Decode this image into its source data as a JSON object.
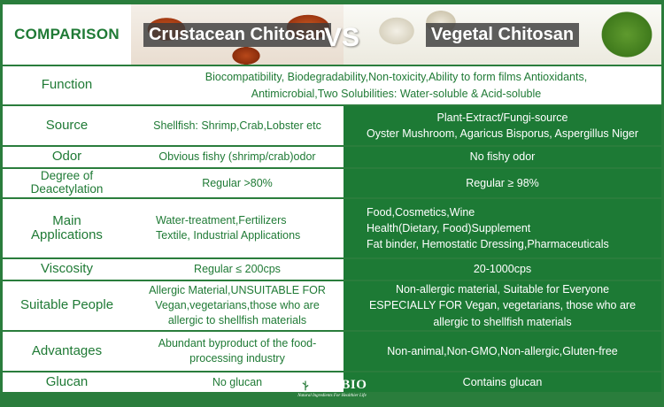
{
  "header": {
    "comparison": "COMPARISON",
    "crustacean_title": "Crustacean Chitosan",
    "vs": "VS",
    "vegetal_title": "Vegetal Chitosan"
  },
  "rows": {
    "function": {
      "label": "Function",
      "text_line1": "Biocompatibility, Biodegradability,Non-toxicity,Ability to form films Antioxidants,",
      "text_line2": "Antimicrobial,Two Solubilities: Water-soluble & Acid-soluble"
    },
    "source": {
      "label": "Source",
      "crustacean": "Shellfish: Shrimp,Crab,Lobster etc",
      "vegetal_line1": "Plant-Extract/Fungi-source",
      "vegetal_line2": "Oyster Mushroom, Agaricus Bisporus, Aspergillus Niger"
    },
    "odor": {
      "label": "Odor",
      "crustacean": "Obvious fishy (shrimp/crab)odor",
      "vegetal": "No fishy odor"
    },
    "deacetylation": {
      "label_line1": "Degree of",
      "label_line2": "Deacetylation",
      "crustacean": "Regular >80%",
      "vegetal": "Regular ≥ 98%"
    },
    "applications": {
      "label_line1": "Main",
      "label_line2": "Applications",
      "crustacean_line1": "Water-treatment,Fertilizers",
      "crustacean_line2": "Textile, Industrial Applications",
      "vegetal_line1": "Food,Cosmetics,Wine",
      "vegetal_line2": "Health(Dietary, Food)Supplement",
      "vegetal_line3": "Fat binder, Hemostatic Dressing,Pharmaceuticals"
    },
    "viscosity": {
      "label": "Viscosity",
      "crustacean": "Regular ≤ 200cps",
      "vegetal": "20-1000cps"
    },
    "people": {
      "label": "Suitable People",
      "crustacean_line1": "Allergic Material,UNSUITABLE FOR",
      "crustacean_line2": "Vegan,vegetarians,those who are",
      "crustacean_line3": "allergic to shellfish materials",
      "vegetal_line1": "Non-allergic material, Suitable for Everyone",
      "vegetal_line2": "ESPECIALLY FOR Vegan, vegetarians, those who are",
      "vegetal_line3": "allergic to shellfish materials"
    },
    "advantages": {
      "label": "Advantages",
      "crustacean_line1": "Abundant byproduct of the food-",
      "crustacean_line2": "processing industry",
      "vegetal": "Non-animal,Non-GMO,Non-allergic,Gluten-free"
    },
    "glucan": {
      "label": "Glucan",
      "crustacean": "No glucan",
      "vegetal": "Contains glucan"
    }
  },
  "logo": {
    "name": "CHIBIO",
    "tagline": "Natural Ingredients For Healthier Life"
  },
  "colors": {
    "brand_green": "#1f7a35",
    "background_green": "#2a7d3c",
    "cell_white": "#ffffff"
  }
}
